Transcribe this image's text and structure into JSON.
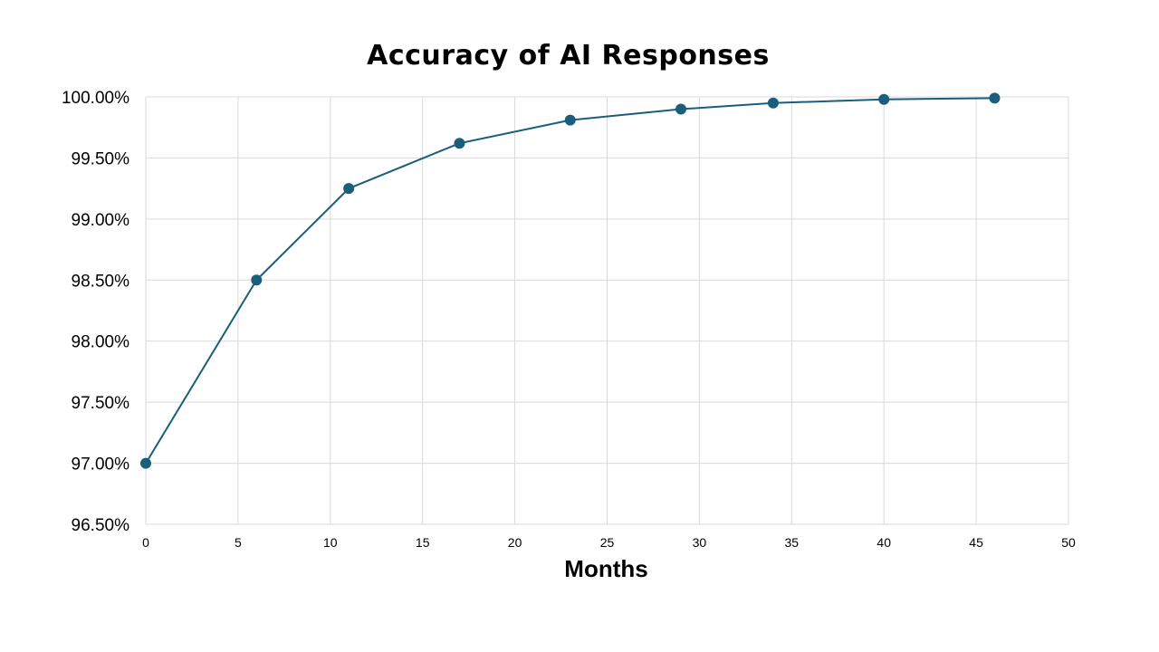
{
  "chart_data": {
    "type": "line",
    "title": "Accuracy of AI Responses",
    "xlabel": "Months",
    "ylabel": "",
    "x": [
      0,
      6,
      11,
      17,
      23,
      29,
      34,
      40,
      46
    ],
    "series": [
      {
        "values": [
          97.0,
          98.5,
          99.25,
          99.62,
          99.81,
          99.9,
          99.95,
          99.98,
          99.99
        ]
      }
    ],
    "xlim": [
      0,
      50
    ],
    "ylim": [
      96.5,
      100.0
    ],
    "x_ticks": [
      0,
      5,
      10,
      15,
      20,
      25,
      30,
      35,
      40,
      45,
      50
    ],
    "x_tick_labels": [
      "0",
      "5",
      "10",
      "15",
      "20",
      "25",
      "30",
      "35",
      "40",
      "45",
      "50"
    ],
    "y_ticks": [
      96.5,
      97.0,
      97.5,
      98.0,
      98.5,
      99.0,
      99.5,
      100.0
    ],
    "y_tick_labels": [
      "96.50%",
      "97.00%",
      "97.50%",
      "98.00%",
      "98.50%",
      "99.00%",
      "99.50%",
      "100.00%"
    ],
    "grid": true,
    "legend": "none",
    "colors": {
      "series": "#1b5e7b",
      "grid": "#d9d9d9",
      "text": "#000000"
    }
  }
}
